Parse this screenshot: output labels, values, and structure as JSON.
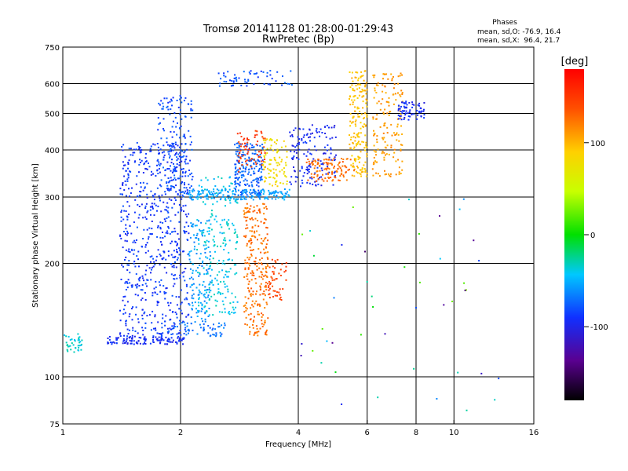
{
  "chart_data": {
    "type": "scatter",
    "title": "Tromsø 20141128 01:28:00-01:29:43",
    "subtitle": "RwPretec (Bp)",
    "xlabel": "Frequency [MHz]",
    "ylabel": "Stationary phase Virtual Height [km]",
    "x_scale": "log",
    "y_scale": "log",
    "xlim": [
      1,
      16
    ],
    "ylim": [
      75,
      750
    ],
    "x_ticks": [
      1,
      2,
      4,
      6,
      8,
      10,
      16
    ],
    "x_tick_labels": [
      "1",
      "2",
      "4",
      "6",
      "8",
      "10",
      "16"
    ],
    "x_grid": [
      2,
      4,
      6,
      8,
      10
    ],
    "y_ticks": [
      75,
      100,
      200,
      300,
      400,
      500,
      600,
      750
    ],
    "y_tick_labels": [
      "75",
      "100",
      "200",
      "300",
      "400",
      "500",
      "600",
      "750"
    ],
    "y_grid": [
      100,
      200,
      300,
      400,
      500,
      600
    ],
    "grid": true,
    "phases_info": {
      "title": "Phases",
      "line_o": "mean, sd,O: -76.9, 16.4",
      "line_x": "mean, sd,X:  96.4, 21.7"
    },
    "colorbar": {
      "label": "[deg]",
      "range": [
        -180,
        180
      ],
      "ticks": [
        100,
        0,
        -100
      ],
      "tick_labels": [
        "100",
        "0",
        "-100"
      ]
    },
    "clusters": [
      {
        "kind": "trace",
        "f_range": [
          1.0,
          1.12
        ],
        "h_range": [
          115,
          130
        ],
        "phase": -35,
        "count": 40
      },
      {
        "kind": "trace",
        "f_range": [
          1.3,
          2.05
        ],
        "h_range": [
          122,
          128
        ],
        "phase": -95,
        "count": 120
      },
      {
        "kind": "trace",
        "f_range": [
          1.85,
          2.6
        ],
        "h_range": [
          128,
          140
        ],
        "phase": -70,
        "count": 60
      },
      {
        "kind": "region",
        "f_range": [
          1.4,
          2.1
        ],
        "h_range": [
          128,
          420
        ],
        "phase": -88,
        "count": 650
      },
      {
        "kind": "region",
        "f_range": [
          1.75,
          2.15
        ],
        "h_range": [
          300,
          560
        ],
        "phase": -80,
        "count": 160
      },
      {
        "kind": "region",
        "f_range": [
          2.1,
          2.4
        ],
        "h_range": [
          140,
          260
        ],
        "phase": -60,
        "count": 120
      },
      {
        "kind": "region",
        "f_range": [
          2.2,
          2.8
        ],
        "h_range": [
          145,
          340
        ],
        "phase": -40,
        "count": 220
      },
      {
        "kind": "trace",
        "f_range": [
          2.1,
          3.8
        ],
        "h_range": [
          295,
          315
        ],
        "phase": -55,
        "count": 180
      },
      {
        "kind": "region",
        "f_range": [
          2.75,
          3.25
        ],
        "h_range": [
          300,
          420
        ],
        "phase": -75,
        "count": 200
      },
      {
        "kind": "region",
        "f_range": [
          2.8,
          3.3
        ],
        "h_range": [
          350,
          450
        ],
        "phase": 150,
        "count": 70
      },
      {
        "kind": "region",
        "f_range": [
          3.25,
          3.75
        ],
        "h_range": [
          320,
          430
        ],
        "phase": 80,
        "count": 90
      },
      {
        "kind": "region",
        "f_range": [
          2.9,
          3.35
        ],
        "h_range": [
          128,
          290
        ],
        "phase": 125,
        "count": 260
      },
      {
        "kind": "region",
        "f_range": [
          3.35,
          3.75
        ],
        "h_range": [
          160,
          210
        ],
        "phase": 145,
        "count": 50
      },
      {
        "kind": "trace",
        "f_range": [
          2.5,
          3.9
        ],
        "h_range": [
          590,
          650
        ],
        "phase": -80,
        "count": 60
      },
      {
        "kind": "region",
        "f_range": [
          3.8,
          5.0
        ],
        "h_range": [
          320,
          470
        ],
        "phase": -95,
        "count": 150
      },
      {
        "kind": "region",
        "f_range": [
          4.2,
          5.6
        ],
        "h_range": [
          330,
          380
        ],
        "phase": 125,
        "count": 110
      },
      {
        "kind": "region",
        "f_range": [
          5.4,
          6.0
        ],
        "h_range": [
          340,
          650
        ],
        "phase": 95,
        "count": 180
      },
      {
        "kind": "region",
        "f_range": [
          6.2,
          7.4
        ],
        "h_range": [
          340,
          640
        ],
        "phase": 110,
        "count": 160
      },
      {
        "kind": "region",
        "f_range": [
          7.2,
          8.4
        ],
        "h_range": [
          480,
          540
        ],
        "phase": -95,
        "count": 70
      },
      {
        "kind": "sparse",
        "f_range": [
          4.0,
          13.5
        ],
        "h_range": [
          80,
          300
        ],
        "phase": -60,
        "count": 45
      }
    ]
  }
}
